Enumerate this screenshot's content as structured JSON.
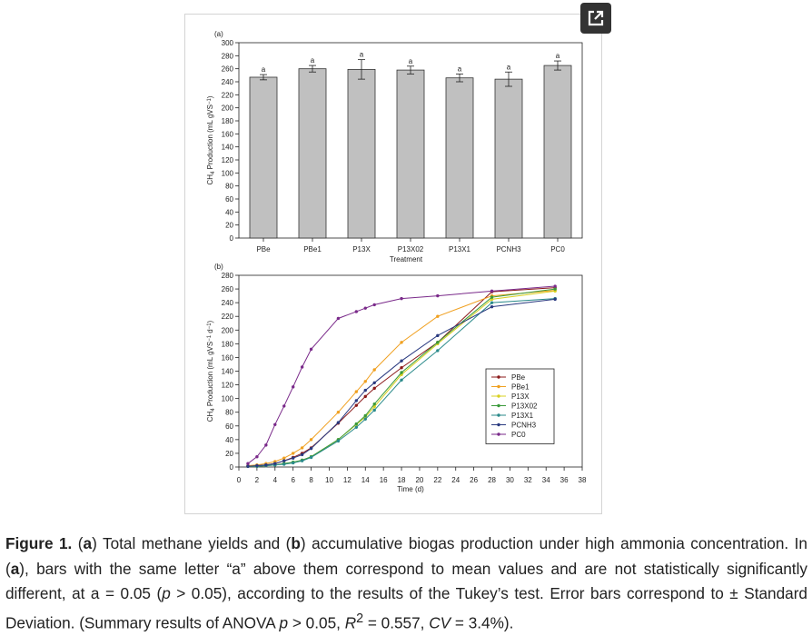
{
  "expand_button": {
    "icon": "expand-icon"
  },
  "chart_data": [
    {
      "panel": "(a)",
      "type": "bar",
      "title": "",
      "xlabel": "Treatment",
      "ylabel_parts": [
        "CH",
        "4",
        " Production (mL gVS",
        "−1",
        ")"
      ],
      "ylim": [
        0,
        300
      ],
      "ytick_step": 20,
      "categories": [
        "PBe",
        "PBe1",
        "P13X",
        "P13X02",
        "P13X1",
        "PCNH3",
        "PC0"
      ],
      "values": [
        247,
        260,
        259,
        258,
        246,
        244,
        265
      ],
      "errors": [
        4,
        5,
        15,
        6,
        6,
        11,
        7
      ],
      "letters": [
        "a",
        "a",
        "a",
        "a",
        "a",
        "a",
        "a"
      ],
      "bar_color": "#c0c0c0"
    },
    {
      "panel": "(b)",
      "type": "line",
      "title": "",
      "xlabel": "Time (d)",
      "ylabel_parts": [
        "CH",
        "4",
        " Production (mL gVS",
        "−1",
        " d",
        "−1",
        ")"
      ],
      "xlim": [
        0,
        38
      ],
      "xtick_step": 2,
      "ylim": [
        0,
        280
      ],
      "ytick_step": 20,
      "legend_position": "center-right",
      "x": [
        1,
        2,
        3,
        4,
        5,
        6,
        7,
        8,
        11,
        13,
        14,
        15,
        18,
        22,
        28,
        35
      ],
      "series": [
        {
          "name": "PBe",
          "color": "#8b1a1a",
          "values": [
            1,
            2,
            3,
            5,
            9,
            14,
            20,
            28,
            64,
            90,
            103,
            115,
            145,
            182,
            256,
            262
          ]
        },
        {
          "name": "PBe1",
          "color": "#f0a020",
          "values": [
            2,
            3,
            5,
            8,
            13,
            20,
            28,
            40,
            80,
            110,
            125,
            142,
            182,
            220,
            250,
            258
          ]
        },
        {
          "name": "P13X",
          "color": "#d8d020",
          "values": [
            1,
            1,
            2,
            3,
            5,
            7,
            10,
            15,
            40,
            62,
            73,
            88,
            135,
            180,
            245,
            257
          ]
        },
        {
          "name": "P13X02",
          "color": "#3a9a3a",
          "values": [
            1,
            1,
            2,
            3,
            5,
            7,
            10,
            15,
            40,
            63,
            75,
            92,
            138,
            182,
            248,
            260
          ]
        },
        {
          "name": "P13X1",
          "color": "#2a8a8a",
          "values": [
            1,
            1,
            2,
            3,
            4,
            6,
            9,
            14,
            38,
            58,
            70,
            83,
            127,
            170,
            240,
            246
          ]
        },
        {
          "name": "PCNH3",
          "color": "#2a3a80",
          "values": [
            1,
            2,
            3,
            5,
            9,
            13,
            18,
            27,
            65,
            97,
            112,
            123,
            155,
            192,
            234,
            245
          ]
        },
        {
          "name": "PC0",
          "color": "#7a2a8a",
          "values": [
            5,
            15,
            32,
            62,
            89,
            117,
            146,
            172,
            217,
            227,
            232,
            237,
            246,
            250,
            257,
            264
          ]
        }
      ]
    }
  ],
  "caption": {
    "label": "Figure 1.",
    "text_1": " (",
    "a1": "a",
    "text_2": ") Total methane yields and (",
    "b1": "b",
    "text_3": ") accumulative biogas production under high ammonia concentration. In (",
    "a2": "a",
    "text_4": "), bars with the same letter “a” above them correspond to mean values and are not statistically significantly different, at a = 0.05 (",
    "p1": "p",
    "text_5": " > 0.05), according to the results of the Tukey’s test. Error bars correspond to ± Standard Deviation. (Summary results of ANOVA ",
    "p2": "p",
    "text_6": " > 0.05, ",
    "r": "R",
    "r_sup": "2",
    "text_7": " = 0.557, ",
    "cv": "CV",
    "text_8": " = 3.4%)."
  }
}
